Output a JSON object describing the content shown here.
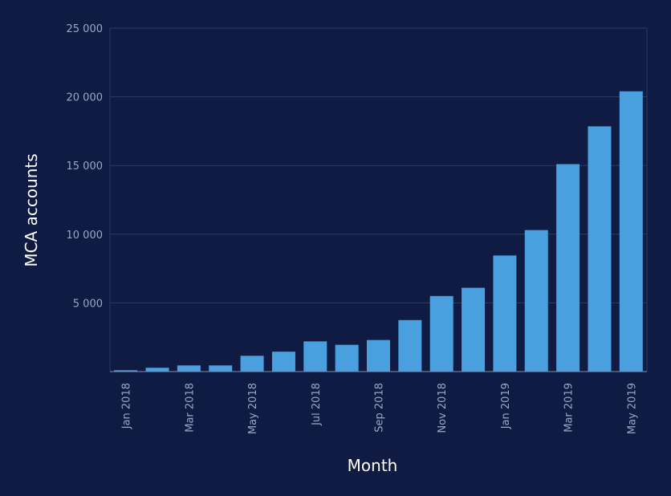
{
  "colors": {
    "background": "#0f1b42",
    "bar": "#4a9fdf",
    "grid": "#2d3a66",
    "tick_text": "#9aa6c8",
    "axis_title": "#ffffff"
  },
  "chart_data": {
    "type": "bar",
    "title": "",
    "xlabel": "Month",
    "ylabel": "MCA accounts",
    "ylim": [
      0,
      25000
    ],
    "y_ticks": [
      {
        "value": 5000,
        "label": "5 000"
      },
      {
        "value": 10000,
        "label": "10 000"
      },
      {
        "value": 15000,
        "label": "15 000"
      },
      {
        "value": 20000,
        "label": "20 000"
      },
      {
        "value": 25000,
        "label": "25 000"
      }
    ],
    "grid": true,
    "legend": "none",
    "categories": [
      "Jan 2018",
      "Feb 2018",
      "Mar 2018",
      "Apr 2018",
      "May 2018",
      "Jun 2018",
      "Jul 2018",
      "Aug 2018",
      "Sep 2018",
      "Oct 2018",
      "Nov 2018",
      "Dec 2018",
      "Jan 2019",
      "Feb 2019",
      "Mar 2019",
      "Apr 2019",
      "May 2019"
    ],
    "x_tick_labels": [
      "Jan 2018",
      "",
      "Mar 2018",
      "",
      "May 2018",
      "",
      "Jul 2018",
      "",
      "Sep 2018",
      "",
      "Nov 2018",
      "",
      "Jan 2019",
      "",
      "Mar 2019",
      "",
      "May 2019"
    ],
    "values": [
      100,
      280,
      450,
      450,
      1150,
      1450,
      2200,
      1950,
      2300,
      3750,
      5500,
      6100,
      8450,
      10300,
      15100,
      17850,
      20400
    ]
  }
}
